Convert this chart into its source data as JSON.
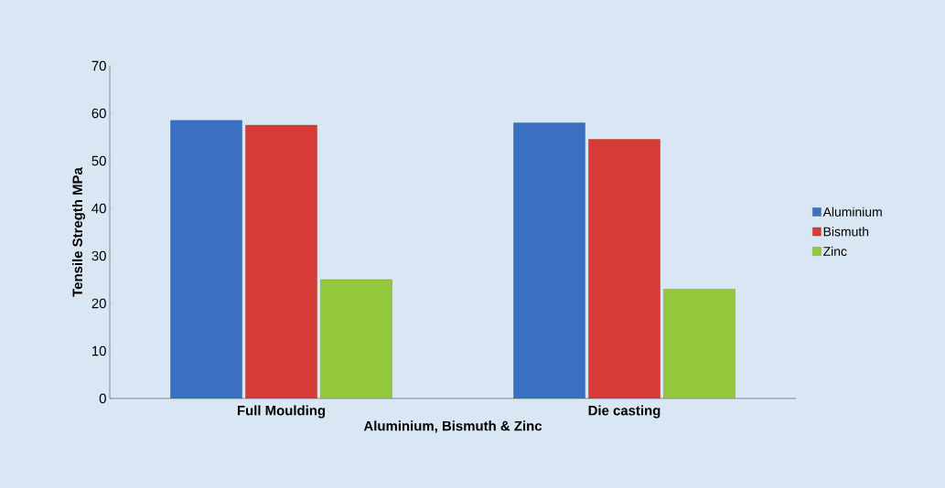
{
  "chart_data": {
    "type": "bar",
    "xlabel": "Aluminium, Bismuth & Zinc",
    "ylabel": "Tensile Stregth MPa",
    "categories": [
      "Full Moulding",
      "Die casting"
    ],
    "series": [
      {
        "name": "Aluminium",
        "color": "#3b6fc2",
        "values": [
          58.5,
          58
        ]
      },
      {
        "name": "Bismuth",
        "color": "#d63b36",
        "values": [
          57.5,
          54.5
        ]
      },
      {
        "name": "Zinc",
        "color": "#93c83c",
        "values": [
          25,
          23
        ]
      }
    ],
    "ylim": [
      0,
      70
    ],
    "yticks": [
      0,
      10,
      20,
      30,
      40,
      50,
      60,
      70
    ],
    "grid": false,
    "legend": "right"
  }
}
